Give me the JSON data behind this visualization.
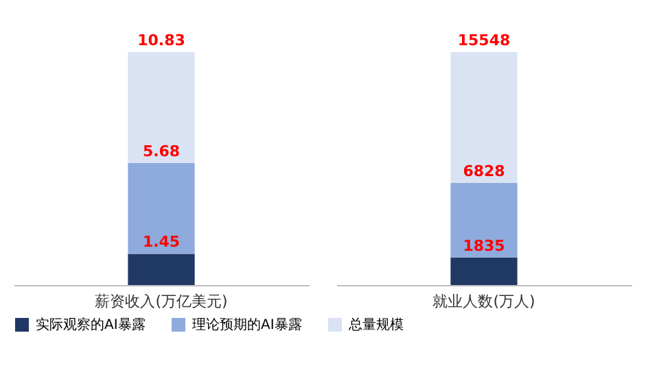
{
  "chart_data": [
    {
      "type": "bar",
      "stacked": true,
      "categories": [
        "薪资收入(万亿美元)"
      ],
      "tick_labels": "x",
      "legend": "bottom",
      "totals": [
        "10.83"
      ],
      "annotations": [
        {
          "text": "5.68",
          "x": "薪资收入(万亿美元)",
          "y": 5.68
        }
      ],
      "series": [
        {
          "name": "实际观察的AI暴露",
          "color": "#1f3864",
          "values": [
            1.45
          ],
          "value_labels": [
            "1.45"
          ]
        },
        {
          "name": "理论预期的AI暴露",
          "color": "#8faadc",
          "values": [
            4.23
          ]
        },
        {
          "name": "总量规模",
          "color": "#dae3f3",
          "values": [
            5.15
          ]
        }
      ]
    },
    {
      "type": "bar",
      "stacked": true,
      "categories": [
        "就业人数(万人)"
      ],
      "tick_labels": "x",
      "totals": [
        "15548"
      ],
      "annotations": [
        {
          "text": "6828",
          "x": "就业人数(万人)",
          "y": 6828
        }
      ],
      "series": [
        {
          "color": "#1f3864",
          "values": [
            1835
          ],
          "value_labels": [
            "1835"
          ]
        },
        {
          "color": "#8faadc",
          "values": [
            4993
          ]
        },
        {
          "color": "#dae3f3",
          "values": [
            8720
          ]
        }
      ]
    }
  ]
}
